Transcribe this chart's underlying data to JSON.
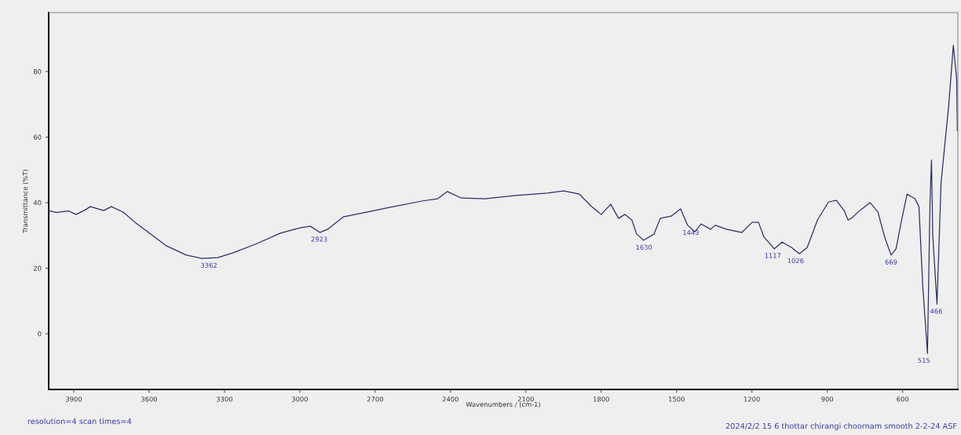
{
  "chart_data": {
    "type": "line",
    "xlabel": "Wavenumbers / (cm-1)",
    "ylabel": "Transmittance (%T)",
    "xlim": [
      4000,
      380
    ],
    "ylim": [
      -17,
      98
    ],
    "xticks": [
      3900,
      3600,
      3300,
      3000,
      2700,
      2400,
      2100,
      1800,
      1500,
      1200,
      900,
      600
    ],
    "yticks": [
      0,
      20,
      40,
      60,
      80
    ],
    "grid": false,
    "marker": "none",
    "line_style": "solid",
    "series": [
      {
        "color": "#2b2f6b",
        "x": [
          4000,
          3969,
          3922,
          3891,
          3859,
          3834,
          3781,
          3750,
          3703,
          3656,
          3593,
          3531,
          3452,
          3390,
          3327,
          3265,
          3171,
          3077,
          2999,
          2958,
          2920,
          2889,
          2826,
          2733,
          2639,
          2513,
          2451,
          2413,
          2357,
          2263,
          2138,
          2013,
          1950,
          1887,
          1841,
          1800,
          1762,
          1731,
          1706,
          1678,
          1659,
          1631,
          1590,
          1565,
          1521,
          1484,
          1456,
          1427,
          1402,
          1365,
          1346,
          1302,
          1240,
          1199,
          1174,
          1152,
          1111,
          1080,
          1042,
          1011,
          980,
          939,
          895,
          864,
          833,
          817,
          801,
          770,
          729,
          698,
          673,
          646,
          626,
          604,
          582,
          551,
          535,
          520,
          501,
          491,
          485,
          480,
          463,
          447,
          416,
          398,
          385,
          382
        ],
        "values": [
          37.6,
          37,
          37.5,
          36.4,
          37.6,
          38.8,
          37.6,
          38.8,
          37.1,
          34,
          30.4,
          26.8,
          24,
          23,
          23.2,
          24.7,
          27.5,
          30.7,
          32.3,
          32.8,
          30.9,
          31.9,
          35.7,
          37.1,
          38.6,
          40.5,
          41.2,
          43.4,
          41.4,
          41.2,
          42.2,
          42.9,
          43.6,
          42.6,
          39,
          36.4,
          39.5,
          35.2,
          36.4,
          34.7,
          30.4,
          28.5,
          30.4,
          35.2,
          35.9,
          38.1,
          33.1,
          31.1,
          33.5,
          31.9,
          33.1,
          31.9,
          30.9,
          34,
          34,
          29.5,
          25.9,
          28,
          26.3,
          24.4,
          26.3,
          34.7,
          40.2,
          40.7,
          37.6,
          34.7,
          35.4,
          37.6,
          40,
          37.1,
          29.9,
          24,
          25.9,
          34.7,
          42.6,
          41.2,
          38.8,
          14.9,
          -6,
          40,
          53,
          30,
          9,
          46,
          70,
          88,
          78,
          62
        ]
      }
    ],
    "annotations": [
      {
        "text": "3362",
        "x": 3362,
        "y": 23
      },
      {
        "text": "2923",
        "x": 2923,
        "y": 31
      },
      {
        "text": "1630",
        "x": 1630,
        "y": 28.5
      },
      {
        "text": "1443",
        "x": 1443,
        "y": 33
      },
      {
        "text": "1117",
        "x": 1117,
        "y": 26
      },
      {
        "text": "1026",
        "x": 1026,
        "y": 24.4
      },
      {
        "text": "669",
        "x": 646,
        "y": 24
      },
      {
        "text": "515",
        "x": 515,
        "y": -6
      },
      {
        "text": "466",
        "x": 466,
        "y": 9
      },
      "resolution=4 scan times=4",
      "2024/2/2 15 6 thottar chirangi choornam smooth 2-2-24 ASF"
    ]
  }
}
